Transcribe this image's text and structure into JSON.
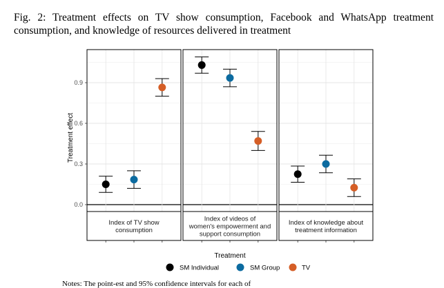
{
  "caption": "Fig. 2: Treatment effects on TV show consumption, Facebook and WhatsApp treatment consumption, and knowledge of resources delivered in treatment",
  "note": "Notes: The point-est and 95% confidence intervals for each of",
  "chart_data": {
    "type": "scatter",
    "ylabel": "Treatment effect",
    "y_ticks": [
      "0.0",
      "0.3",
      "0.6",
      "0.9"
    ],
    "ylim": [
      -0.05,
      1.15
    ],
    "grid": true,
    "legend": {
      "title": "Treatment",
      "placement": "bottom",
      "items": [
        {
          "label": "SM Individual",
          "color": "#000000"
        },
        {
          "label": "SM Group",
          "color": "#0C6BA0"
        },
        {
          "label": "TV",
          "color": "#D55E26"
        }
      ]
    },
    "panels": [
      {
        "label_lines": [
          "Index of TV show",
          "consumption"
        ],
        "points": [
          {
            "series": "SM Individual",
            "y": 0.15,
            "lo": 0.09,
            "hi": 0.21
          },
          {
            "series": "SM Group",
            "y": 0.185,
            "lo": 0.12,
            "hi": 0.25
          },
          {
            "series": "TV",
            "y": 0.865,
            "lo": 0.8,
            "hi": 0.93
          }
        ]
      },
      {
        "label_lines": [
          "Index of videos of",
          "women's empowerment and",
          "support consumption"
        ],
        "points": [
          {
            "series": "SM Individual",
            "y": 1.03,
            "lo": 0.97,
            "hi": 1.09
          },
          {
            "series": "SM Group",
            "y": 0.935,
            "lo": 0.87,
            "hi": 1.0
          },
          {
            "series": "TV",
            "y": 0.47,
            "lo": 0.4,
            "hi": 0.54
          }
        ]
      },
      {
        "label_lines": [
          "Index of knowledge about",
          "treatment information"
        ],
        "points": [
          {
            "series": "SM Individual",
            "y": 0.225,
            "lo": 0.165,
            "hi": 0.285
          },
          {
            "series": "SM Group",
            "y": 0.3,
            "lo": 0.235,
            "hi": 0.365
          },
          {
            "series": "TV",
            "y": 0.125,
            "lo": 0.06,
            "hi": 0.19
          }
        ]
      }
    ]
  }
}
